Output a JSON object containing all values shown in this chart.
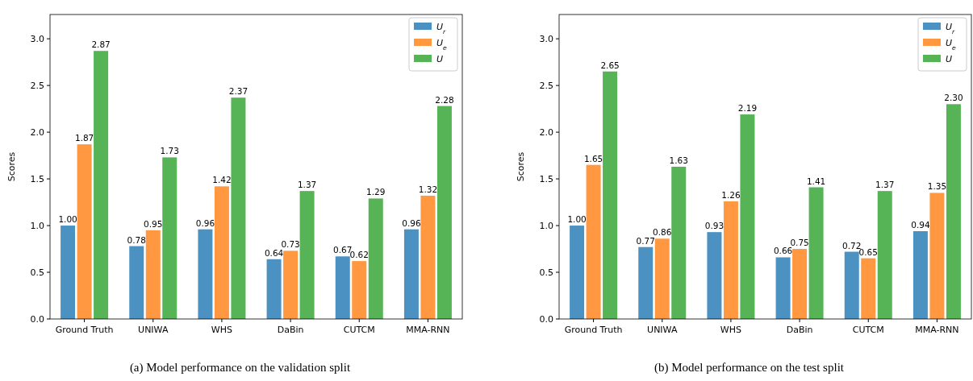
{
  "chart_data": [
    {
      "type": "bar",
      "ylabel": "Scores",
      "categories": [
        "Ground Truth",
        "UNIWA",
        "WHS",
        "DaBin",
        "CUTCM",
        "MMA-RNN"
      ],
      "series": [
        {
          "name": "U$_{r}$",
          "color": "#4b92c3",
          "values": [
            1.0,
            0.78,
            0.96,
            0.64,
            0.67,
            0.96
          ],
          "value_labels": [
            "1.00",
            "0.78",
            "0.96",
            "0.64",
            "0.67",
            "0.96"
          ]
        },
        {
          "name": "U$_{e}$",
          "color": "#ff9840",
          "values": [
            1.87,
            0.95,
            1.42,
            0.73,
            0.62,
            1.32
          ],
          "value_labels": [
            "1.87",
            "0.95",
            "1.42",
            "0.73",
            "0.62",
            "1.32"
          ]
        },
        {
          "name": "U",
          "color": "#56b356",
          "values": [
            2.87,
            1.73,
            2.37,
            1.37,
            1.29,
            2.28
          ],
          "value_labels": [
            "2.87",
            "1.73",
            "2.37",
            "1.37",
            "1.29",
            "2.28"
          ]
        }
      ],
      "ylim": [
        0,
        3.26
      ],
      "yticks": [
        {
          "value": 0,
          "label": "0.0"
        },
        {
          "value": 0.5,
          "label": "0.5"
        },
        {
          "value": 1,
          "label": "1.0"
        },
        {
          "value": 1.5,
          "label": "1.5"
        },
        {
          "value": 2,
          "label": "2.0"
        },
        {
          "value": 2.5,
          "label": "2.5"
        },
        {
          "value": 3,
          "label": "3.0"
        }
      ],
      "legend": "top right",
      "grid": false,
      "annotations": [
        "(a)  Model performance on the validation split"
      ]
    },
    {
      "type": "bar",
      "ylabel": "Scores",
      "categories": [
        "Ground Truth",
        "UNIWA",
        "WHS",
        "DaBin",
        "CUTCM",
        "MMA-RNN"
      ],
      "series": [
        {
          "name": "U$_{r}$",
          "color": "#4b92c3",
          "values": [
            1.0,
            0.77,
            0.93,
            0.66,
            0.72,
            0.94
          ],
          "value_labels": [
            "1.00",
            "0.77",
            "0.93",
            "0.66",
            "0.72",
            "0.94"
          ]
        },
        {
          "name": "U$_{e}$",
          "color": "#ff9840",
          "values": [
            1.65,
            0.86,
            1.26,
            0.75,
            0.65,
            1.35
          ],
          "value_labels": [
            "1.65",
            "0.86",
            "1.26",
            "0.75",
            "0.65",
            "1.35"
          ]
        },
        {
          "name": "U",
          "color": "#56b356",
          "values": [
            2.65,
            1.63,
            2.19,
            1.41,
            1.37,
            2.3
          ],
          "value_labels": [
            "2.65",
            "1.63",
            "2.19",
            "1.41",
            "1.37",
            "2.30"
          ]
        }
      ],
      "ylim": [
        0,
        3.26
      ],
      "yticks": [
        {
          "value": 0,
          "label": "0.0"
        },
        {
          "value": 0.5,
          "label": "0.5"
        },
        {
          "value": 1,
          "label": "1.0"
        },
        {
          "value": 1.5,
          "label": "1.5"
        },
        {
          "value": 2,
          "label": "2.0"
        },
        {
          "value": 2.5,
          "label": "2.5"
        },
        {
          "value": 3,
          "label": "3.0"
        }
      ],
      "legend": "top right",
      "grid": false,
      "annotations": [
        "(b)  Model performance on the test split"
      ]
    }
  ]
}
